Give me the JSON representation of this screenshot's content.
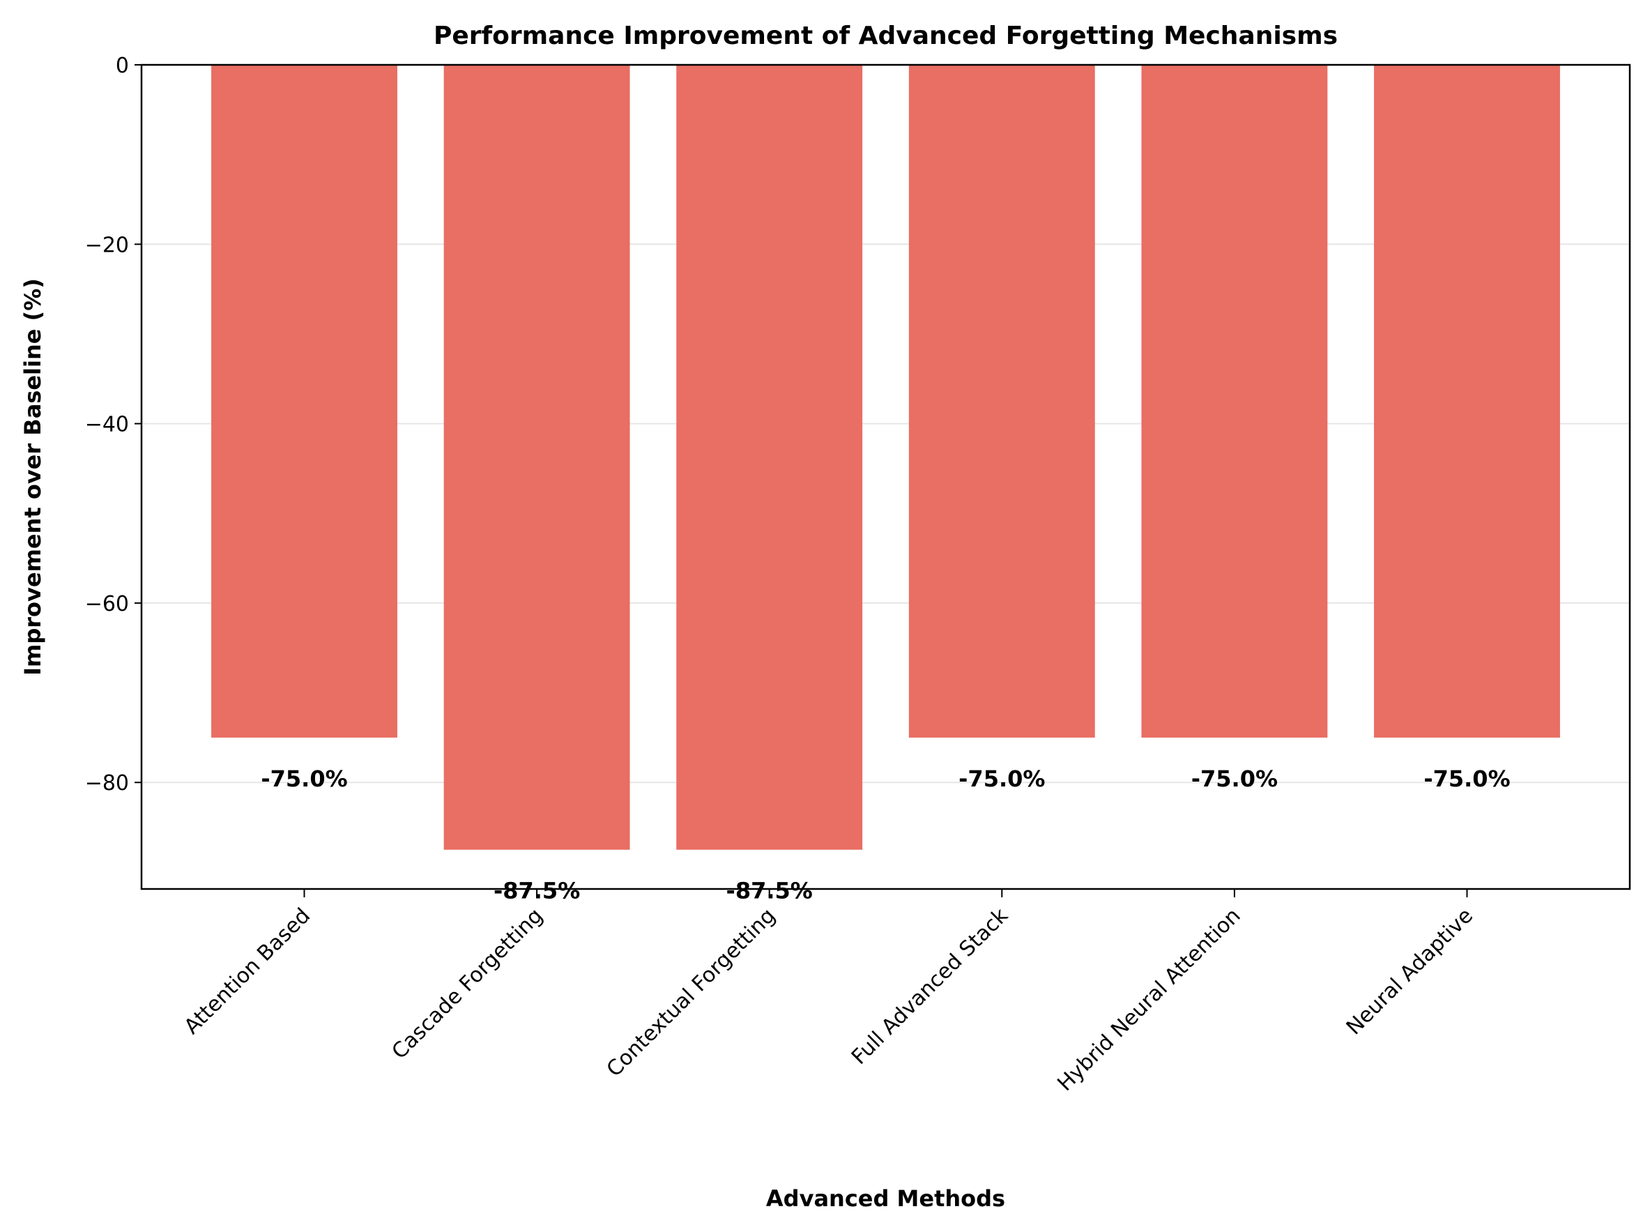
{
  "chart_data": {
    "type": "bar",
    "title": "Performance Improvement of Advanced Forgetting Mechanisms",
    "xlabel": "Advanced Methods",
    "ylabel": "Improvement over Baseline (%)",
    "categories": [
      "Attention Based",
      "Cascade Forgetting",
      "Contextual Forgetting",
      "Full Advanced Stack",
      "Hybrid Neural Attention",
      "Neural Adaptive"
    ],
    "values": [
      -75.0,
      -87.5,
      -87.5,
      -75.0,
      -75.0,
      -75.0
    ],
    "value_labels": [
      "-75.0%",
      "-87.5%",
      "-87.5%",
      "-75.0%",
      "-75.0%",
      "-75.0%"
    ],
    "ylim": [
      -91.875,
      0
    ],
    "yticks": [
      0,
      -20,
      -40,
      -60,
      -80
    ],
    "ytick_labels": [
      "0",
      "−20",
      "−40",
      "−60",
      "−80"
    ],
    "grid": "y",
    "bar_color": "#e96e63",
    "grid_color": "#e6e6e6",
    "tick_rotation_deg": -45
  }
}
